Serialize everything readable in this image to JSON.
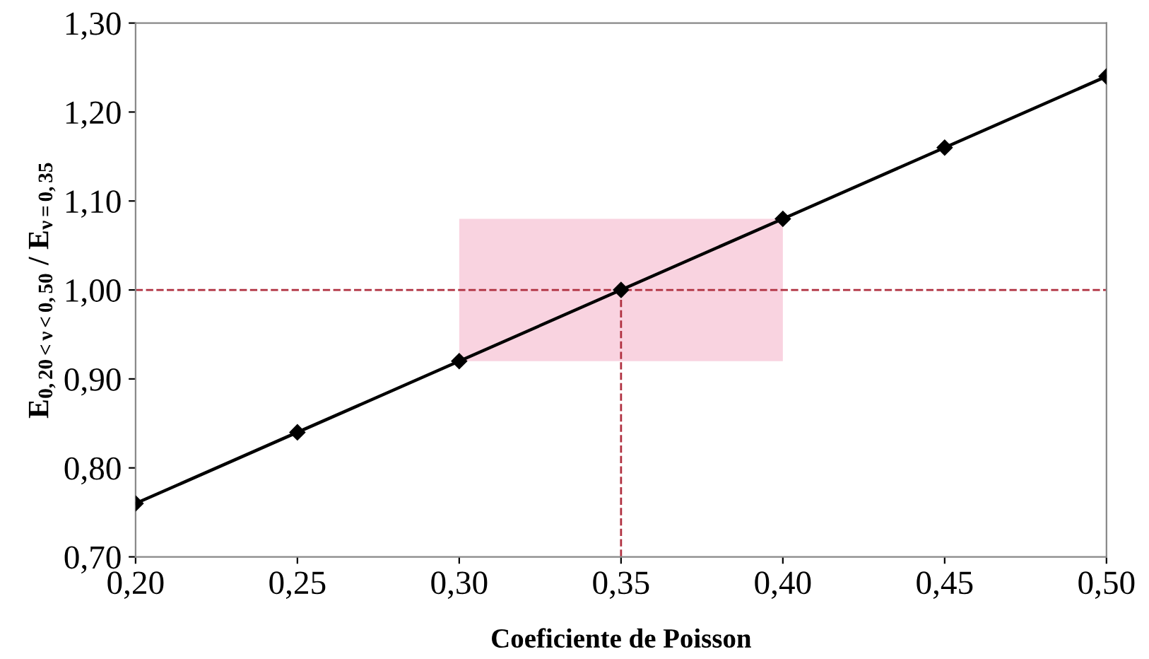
{
  "chart_data": {
    "type": "line",
    "xlabel": "Coeficiente de Poisson",
    "ylabel": "E$_{0,20<ν<0,50}$ / E$_{ν=0,35}$",
    "x": [
      0.2,
      0.25,
      0.3,
      0.35,
      0.4,
      0.45,
      0.5
    ],
    "series": [
      {
        "color": "#000000",
        "values": [
          0.76,
          0.84,
          0.92,
          1.0,
          1.08,
          1.16,
          1.24
        ]
      }
    ],
    "marker": "diamond",
    "line_style": "solid",
    "grid": false,
    "legend": false,
    "xlim": [
      0.2,
      0.5
    ],
    "ylim": [
      0.7,
      1.3
    ],
    "xticks": [
      {
        "value": 0.2,
        "label": "0,20"
      },
      {
        "value": 0.25,
        "label": "0,25"
      },
      {
        "value": 0.3,
        "label": "0,30"
      },
      {
        "value": 0.35,
        "label": "0,35"
      },
      {
        "value": 0.4,
        "label": "0,40"
      },
      {
        "value": 0.45,
        "label": "0,45"
      },
      {
        "value": 0.5,
        "label": "0,50"
      }
    ],
    "yticks": [
      {
        "value": 0.7,
        "label": "0,70"
      },
      {
        "value": 0.8,
        "label": "0,80"
      },
      {
        "value": 0.9,
        "label": "0,90"
      },
      {
        "value": 1.0,
        "label": "1,00"
      },
      {
        "value": 1.1,
        "label": "1,10"
      },
      {
        "value": 1.2,
        "label": "1,20"
      },
      {
        "value": 1.3,
        "label": "1,30"
      }
    ],
    "ref_lines": [
      {
        "axis": "y",
        "value": 1.0,
        "color": "#b03040",
        "line_style": "dashed"
      },
      {
        "axis": "x",
        "value": 0.35,
        "color": "#b03040",
        "line_style": "dashed"
      }
    ],
    "bands": [
      {
        "axis": "x",
        "from": 0.3,
        "to": 0.4,
        "color": "#f9d3e0"
      }
    ]
  }
}
